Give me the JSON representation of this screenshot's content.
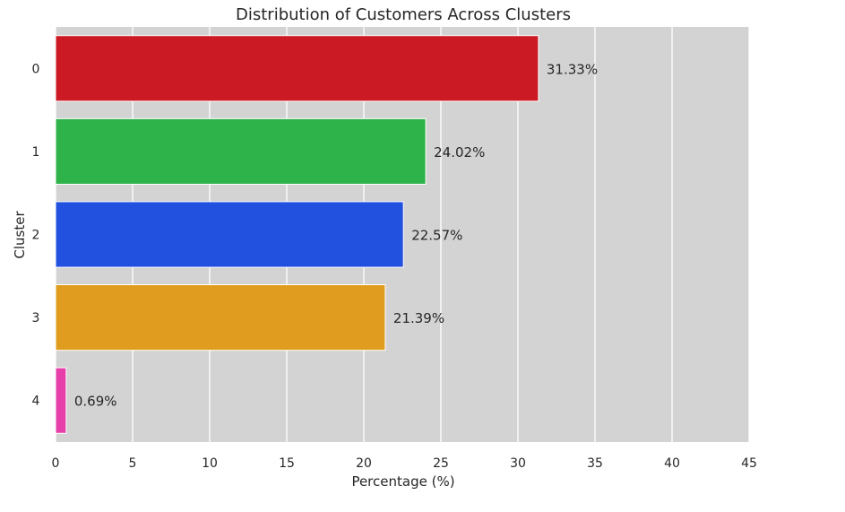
{
  "chart_data": {
    "type": "bar",
    "orientation": "horizontal",
    "title": "Distribution of Customers Across Clusters",
    "xlabel": "Percentage (%)",
    "ylabel": "Cluster",
    "categories": [
      "0",
      "1",
      "2",
      "3",
      "4"
    ],
    "values": [
      31.33,
      24.02,
      22.57,
      21.39,
      0.69
    ],
    "value_labels": [
      "31.33%",
      "24.02%",
      "22.57%",
      "21.39%",
      "0.69%"
    ],
    "colors": [
      "#cc1a24",
      "#2eb34a",
      "#2251e0",
      "#e09c1e",
      "#e63fa9"
    ],
    "xlim": [
      0,
      45
    ],
    "xticks": [
      0,
      5,
      10,
      15,
      20,
      25,
      30,
      35,
      40,
      45
    ],
    "grid": true,
    "background": "#d3d3d3",
    "gridline_color": "#ffffff"
  }
}
